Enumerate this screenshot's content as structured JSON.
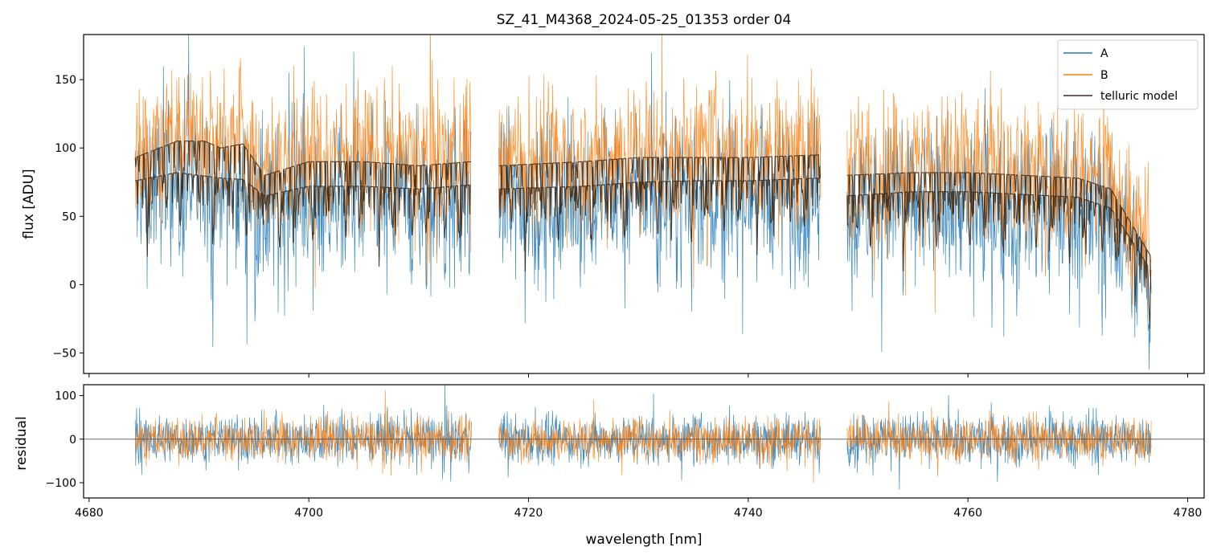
{
  "title": "SZ_41_M4368_2024-05-25_01353  order 04",
  "colors": {
    "series_A": "#1f77b4",
    "series_B": "#ff7f0e",
    "telluric": "#3b2a1a",
    "zero_line": "#555555",
    "axes": "#000000"
  },
  "legend": {
    "placement": "top-right",
    "entries": [
      "A",
      "B",
      "telluric model"
    ]
  },
  "chart_data": [
    {
      "type": "line",
      "panel": "top",
      "xlabel": "",
      "ylabel": "flux [ADU]",
      "xlim": [
        4679.5,
        4781.5
      ],
      "ylim": [
        -65,
        183
      ],
      "x_ticks": [
        4680,
        4700,
        4720,
        4740,
        4760,
        4780
      ],
      "y_ticks": [
        -50,
        0,
        50,
        100,
        150
      ],
      "y_tick_labels": [
        "−50",
        "0",
        "50",
        "100",
        "150"
      ],
      "segments_nm": [
        [
          4684.2,
          4714.8
        ],
        [
          4717.3,
          4746.6
        ],
        [
          4749.0,
          4776.7
        ]
      ],
      "series": [
        {
          "name": "A",
          "color": "#1f77b4",
          "x": [
            4684,
            4690,
            4695,
            4700,
            4705,
            4710,
            4714.5,
            4718,
            4725,
            4730,
            4735,
            4740,
            4746,
            4750,
            4755,
            4760,
            4765,
            4770,
            4776
          ],
          "y": [
            75,
            80,
            60,
            50,
            55,
            50,
            55,
            55,
            55,
            60,
            55,
            55,
            55,
            60,
            55,
            55,
            55,
            55,
            20
          ]
        },
        {
          "name": "B",
          "color": "#ff7f0e",
          "x": [
            4684,
            4690,
            4695,
            4700,
            4705,
            4710,
            4714.5,
            4718,
            4725,
            4730,
            4735,
            4740,
            4746,
            4750,
            4755,
            4760,
            4765,
            4770,
            4776
          ],
          "y": [
            105,
            100,
            80,
            80,
            80,
            75,
            75,
            75,
            75,
            80,
            80,
            75,
            75,
            80,
            75,
            75,
            75,
            75,
            25
          ]
        },
        {
          "name": "telluric model",
          "color": "#3b2a1a",
          "upper": [
            [
              4684.2,
              93
            ],
            [
              4688,
              105
            ],
            [
              4690.5,
              105
            ],
            [
              4692,
              100
            ],
            [
              4694,
              103
            ],
            [
              4696,
              80
            ],
            [
              4700,
              90
            ],
            [
              4705,
              90
            ],
            [
              4710,
              87
            ],
            [
              4714.8,
              90
            ],
            [
              4717.3,
              87
            ],
            [
              4725,
              90
            ],
            [
              4730,
              93
            ],
            [
              4735,
              93
            ],
            [
              4740,
              93
            ],
            [
              4746.6,
              95
            ],
            [
              4749.0,
              80
            ],
            [
              4755,
              82
            ],
            [
              4760,
              82
            ],
            [
              4765,
              80
            ],
            [
              4770,
              78
            ],
            [
              4773,
              70
            ],
            [
              4776.7,
              20
            ]
          ],
          "lower": [
            [
              4684.2,
              76
            ],
            [
              4688,
              82
            ],
            [
              4692,
              78
            ],
            [
              4694,
              77
            ],
            [
              4696,
              65
            ],
            [
              4700,
              72
            ],
            [
              4705,
              72
            ],
            [
              4710,
              70
            ],
            [
              4714.8,
              73
            ],
            [
              4717.3,
              70
            ],
            [
              4725,
              72
            ],
            [
              4730,
              75
            ],
            [
              4735,
              76
            ],
            [
              4740,
              76
            ],
            [
              4746.6,
              78
            ],
            [
              4749.0,
              65
            ],
            [
              4755,
              68
            ],
            [
              4760,
              68
            ],
            [
              4765,
              66
            ],
            [
              4770,
              64
            ],
            [
              4773,
              56
            ],
            [
              4776.7,
              10
            ]
          ]
        }
      ]
    },
    {
      "type": "line",
      "panel": "bottom",
      "xlabel": "wavelength [nm]",
      "ylabel": "residual",
      "xlim": [
        4679.5,
        4781.5
      ],
      "ylim": [
        -135,
        125
      ],
      "x_ticks": [
        4680,
        4700,
        4720,
        4740,
        4760,
        4780
      ],
      "x_tick_labels": [
        "4680",
        "4700",
        "4720",
        "4740",
        "4760",
        "4780"
      ],
      "y_ticks": [
        -100,
        0,
        100
      ],
      "y_tick_labels": [
        "−100",
        "0",
        "100"
      ],
      "reference_line": 0,
      "series": [
        {
          "name": "A",
          "color": "#1f77b4",
          "typical_range": [
            -100,
            100
          ]
        },
        {
          "name": "B",
          "color": "#ff7f0e",
          "typical_range": [
            -80,
            80
          ]
        }
      ]
    }
  ]
}
